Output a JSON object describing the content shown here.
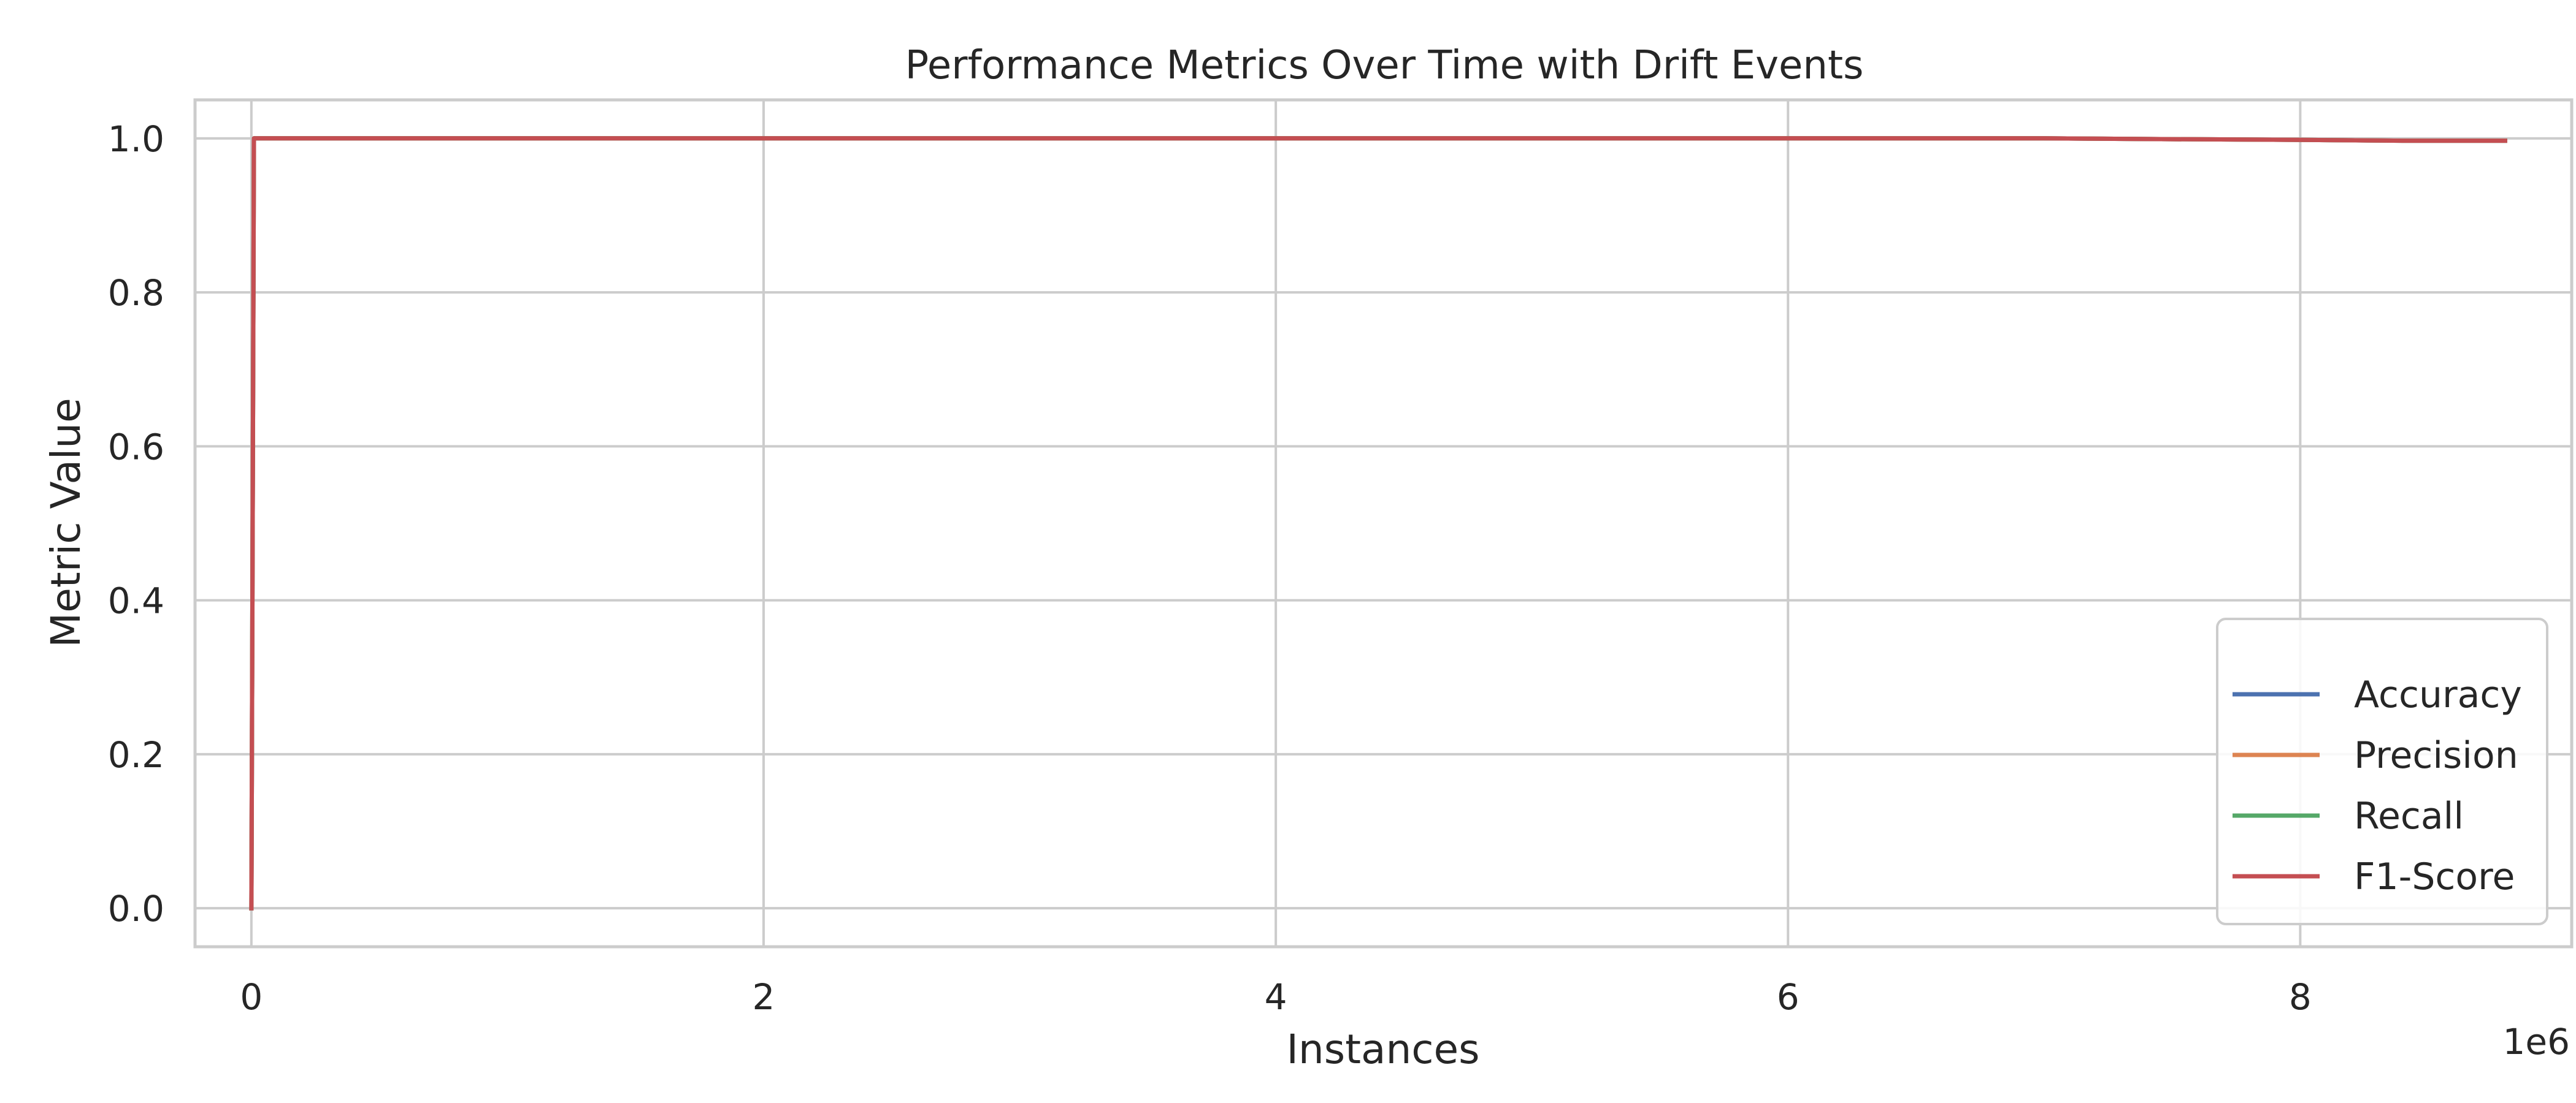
{
  "chart_data": {
    "type": "line",
    "title": "Performance Metrics Over Time with Drift Events",
    "xlabel": "Instances",
    "ylabel": "Metric Value",
    "x_offset_label": "1e6",
    "xlim": [
      -0.22,
      9.06
    ],
    "ylim": [
      -0.05,
      1.05
    ],
    "x_ticks": [
      0,
      2,
      4,
      6,
      8
    ],
    "x_tick_labels": [
      "0",
      "2",
      "4",
      "6",
      "8"
    ],
    "y_ticks": [
      0.0,
      0.2,
      0.4,
      0.6,
      0.8,
      1.0
    ],
    "y_tick_labels": [
      "0.0",
      "0.2",
      "0.4",
      "0.6",
      "0.8",
      "1.0"
    ],
    "grid": true,
    "legend_position": "bottom-right",
    "series": [
      {
        "name": "Accuracy",
        "color": "#4C72B0",
        "x": [
          0,
          0.01,
          1,
          2,
          3,
          4,
          5,
          6,
          7,
          7.5,
          8,
          8.4,
          8.8
        ],
        "y": [
          0.0,
          1.0,
          1.0,
          1.0,
          1.0,
          1.0,
          1.0,
          1.0,
          1.0,
          0.999,
          0.998,
          0.997,
          0.997
        ]
      },
      {
        "name": "Precision",
        "color": "#DD8452",
        "x": [
          0,
          0.01,
          1,
          2,
          3,
          4,
          5,
          6,
          7,
          7.5,
          8,
          8.4,
          8.8
        ],
        "y": [
          0.0,
          1.0,
          1.0,
          1.0,
          1.0,
          1.0,
          1.0,
          1.0,
          1.0,
          0.999,
          0.998,
          0.997,
          0.997
        ]
      },
      {
        "name": "Recall",
        "color": "#55A868",
        "x": [
          0,
          0.01,
          1,
          2,
          3,
          4,
          5,
          6,
          7,
          7.5,
          8,
          8.4,
          8.8
        ],
        "y": [
          0.0,
          1.0,
          1.0,
          1.0,
          1.0,
          1.0,
          1.0,
          1.0,
          1.0,
          0.999,
          0.998,
          0.997,
          0.997
        ]
      },
      {
        "name": "F1-Score",
        "color": "#C44E52",
        "x": [
          0,
          0.01,
          1,
          2,
          3,
          4,
          5,
          6,
          7,
          7.5,
          8,
          8.4,
          8.8
        ],
        "y": [
          0.0,
          1.0,
          1.0,
          1.0,
          1.0,
          1.0,
          1.0,
          1.0,
          1.0,
          0.999,
          0.998,
          0.997,
          0.997
        ]
      }
    ]
  }
}
